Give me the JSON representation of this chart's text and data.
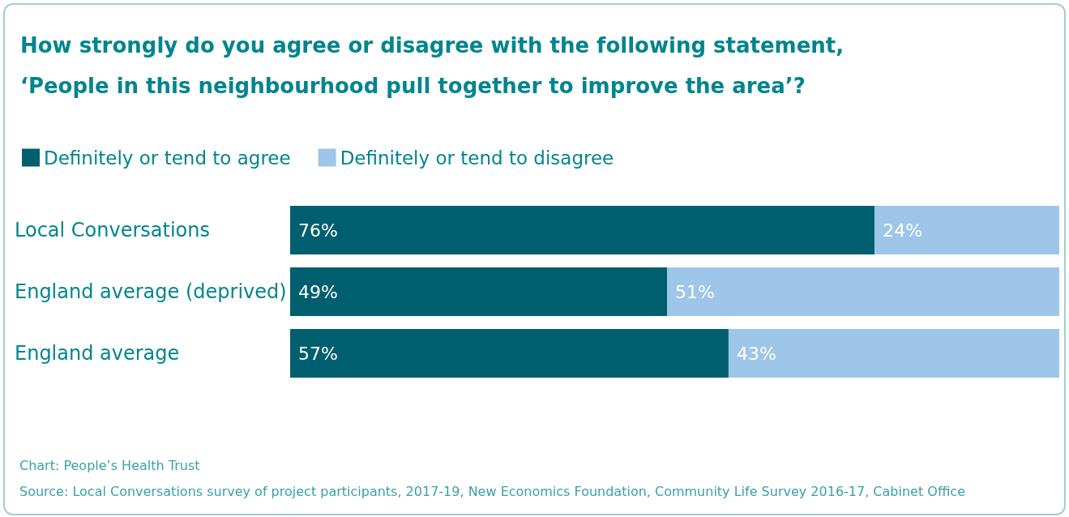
{
  "chart_data": {
    "type": "bar",
    "orientation": "horizontal",
    "stacked": true,
    "title": "How strongly do you agree or disagree with the following statement, ‘People in this neighbourhood pull together to improve the area’?",
    "categories": [
      "Local Conversations",
      "England average (deprived)",
      "England average"
    ],
    "series": [
      {
        "name": "Definitely or tend to agree",
        "color": "#005f6e",
        "values": [
          76,
          49,
          57
        ],
        "value_labels": [
          "76%",
          "49%",
          "57%"
        ]
      },
      {
        "name": "Definitely or tend to disagree",
        "color": "#9dc6e8",
        "values": [
          24,
          51,
          43
        ],
        "value_labels": [
          "24%",
          "51%",
          "43%"
        ]
      }
    ],
    "xlim": [
      0,
      100
    ],
    "tick_labels": "y",
    "grid": false,
    "legend": "top left",
    "annotations": [
      "Chart: People’s Health Trust",
      "Source: Local Conversations survey of project participants, 2017-19, New Economics Foundation, Community Life Survey 2016-17, Cabinet Office"
    ]
  }
}
